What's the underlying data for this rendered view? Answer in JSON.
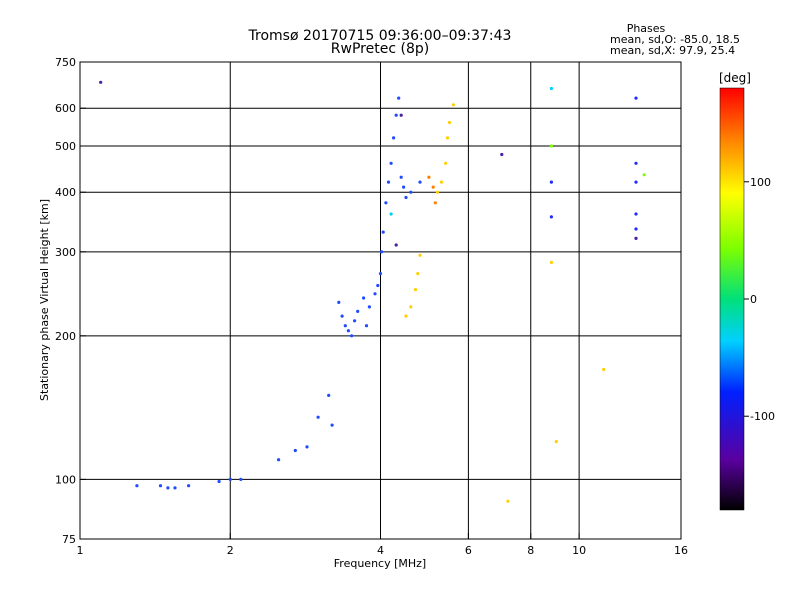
{
  "chart_data": {
    "type": "scatter",
    "title": "Tromsø 20170715 09:36:00–09:37:43",
    "subtitle": "RwPretec (8p)",
    "stats": {
      "heading": "Phases",
      "line_o": "mean, sd,O: -85.0, 18.5",
      "line_x": "mean, sd,X:  97.9, 25.4"
    },
    "xlabel": "Frequency [MHz]",
    "ylabel": "Stationary phase Virtual Height [km]",
    "x_scale": "log2",
    "y_scale": "log",
    "xlim": [
      1,
      16
    ],
    "ylim": [
      75,
      750
    ],
    "x_ticks": [
      1,
      2,
      4,
      6,
      8,
      10,
      16
    ],
    "x_tick_labels": [
      "1",
      "2",
      "4",
      "6",
      "8",
      "10",
      "16"
    ],
    "y_ticks": [
      75,
      100,
      200,
      300,
      400,
      500,
      600,
      750
    ],
    "y_tick_labels": [
      "75",
      "100",
      "200",
      "300",
      "400",
      "500",
      "600",
      "750"
    ],
    "x_grid": [
      2,
      4,
      6,
      8,
      10
    ],
    "y_grid": [
      100,
      200,
      300,
      400,
      500,
      600
    ],
    "grid": true,
    "colorbar": {
      "label": "[deg]",
      "range": [
        -180,
        180
      ],
      "ticks": [
        100,
        0,
        -100
      ],
      "tick_labels": [
        "100",
        "0",
        "-100"
      ]
    },
    "series": [
      {
        "phase": -95,
        "color": "#1f4cff",
        "points": [
          [
            1.3,
            97
          ],
          [
            1.45,
            97
          ],
          [
            1.5,
            96
          ],
          [
            1.55,
            96
          ],
          [
            1.65,
            97
          ],
          [
            1.9,
            99
          ],
          [
            2.0,
            100
          ],
          [
            2.1,
            100
          ],
          [
            2.5,
            110
          ],
          [
            2.7,
            115
          ],
          [
            2.85,
            117
          ],
          [
            3.0,
            135
          ],
          [
            3.15,
            150
          ],
          [
            3.2,
            130
          ]
        ]
      },
      {
        "phase": -95,
        "color": "#1f4cff",
        "points": [
          [
            3.3,
            235
          ],
          [
            3.35,
            220
          ],
          [
            3.4,
            210
          ],
          [
            3.45,
            205
          ],
          [
            3.5,
            200
          ],
          [
            3.55,
            215
          ],
          [
            3.6,
            225
          ],
          [
            3.7,
            240
          ],
          [
            3.75,
            210
          ],
          [
            3.8,
            230
          ],
          [
            3.9,
            245
          ],
          [
            3.95,
            255
          ],
          [
            4.0,
            270
          ],
          [
            4.02,
            300
          ],
          [
            4.05,
            330
          ],
          [
            4.1,
            380
          ],
          [
            4.15,
            420
          ],
          [
            4.2,
            460
          ],
          [
            4.25,
            520
          ],
          [
            4.3,
            580
          ],
          [
            4.35,
            630
          ],
          [
            4.4,
            430
          ],
          [
            4.45,
            410
          ],
          [
            4.5,
            390
          ],
          [
            4.6,
            400
          ],
          [
            4.8,
            420
          ]
        ]
      },
      {
        "phase": 100,
        "color": "#ffd000",
        "points": [
          [
            4.5,
            220
          ],
          [
            4.6,
            230
          ],
          [
            4.7,
            250
          ],
          [
            4.75,
            270
          ],
          [
            4.8,
            295
          ],
          [
            5.2,
            400
          ],
          [
            5.3,
            420
          ],
          [
            5.4,
            460
          ],
          [
            5.45,
            520
          ],
          [
            5.5,
            560
          ],
          [
            5.6,
            610
          ],
          [
            7.2,
            90
          ],
          [
            8.8,
            285
          ],
          [
            9.0,
            120
          ],
          [
            11.2,
            170
          ]
        ]
      },
      {
        "phase": 160,
        "color": "#ff7f00",
        "points": [
          [
            5.0,
            430
          ],
          [
            5.1,
            410
          ],
          [
            5.15,
            380
          ]
        ]
      },
      {
        "phase": -135,
        "color": "#4a1fa0",
        "points": [
          [
            1.1,
            680
          ],
          [
            4.4,
            580
          ],
          [
            4.3,
            310
          ],
          [
            7.0,
            480
          ],
          [
            13.0,
            320
          ]
        ]
      },
      {
        "phase": 60,
        "color": "#7dff00",
        "points": [
          [
            8.8,
            500
          ],
          [
            13.5,
            435
          ]
        ]
      },
      {
        "phase": -20,
        "color": "#00d0ff",
        "points": [
          [
            8.8,
            660
          ],
          [
            4.2,
            360
          ]
        ]
      },
      {
        "phase": -105,
        "color": "#1f2cff",
        "points": [
          [
            8.8,
            420
          ],
          [
            8.8,
            355
          ],
          [
            13.0,
            630
          ],
          [
            13.0,
            460
          ],
          [
            13.0,
            420
          ],
          [
            13.0,
            360
          ],
          [
            13.0,
            335
          ]
        ]
      }
    ]
  }
}
